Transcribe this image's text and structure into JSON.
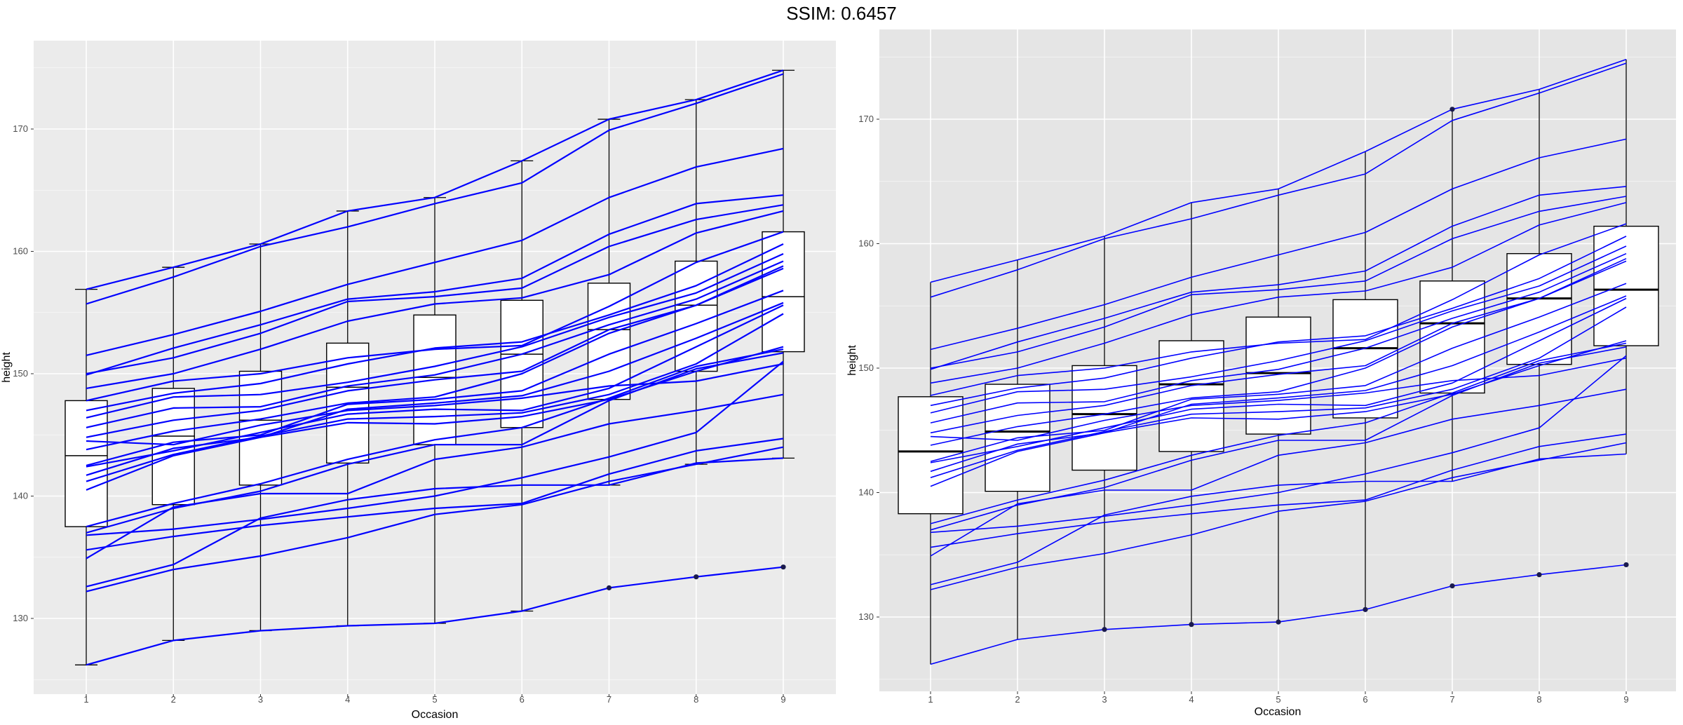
{
  "title": "SSIM: 0.6457",
  "chart_data": [
    {
      "type": "line",
      "variant": "boxplot-with-individual-trajectories",
      "xlabel": "Occasion",
      "ylabel": "height",
      "categories": [
        "1",
        "2",
        "3",
        "4",
        "5",
        "6",
        "7",
        "8",
        "9"
      ],
      "ylim": [
        122,
        176
      ],
      "yticks": [
        130,
        140,
        150,
        160,
        170
      ],
      "yticklabels": [
        "130",
        "140",
        "150",
        "160",
        "170"
      ],
      "grid": true,
      "legend": "none",
      "colors": {
        "lines": "#0000ff",
        "panel": "#ebebeb",
        "grid": "#ffffff",
        "box": "#000000"
      },
      "boxes": [
        {
          "x": "1",
          "whisker_low": 126.2,
          "q1": 137.5,
          "median": 143.3,
          "q3": 147.8,
          "whisker_high": 156.9
        },
        {
          "x": "2",
          "whisker_low": 128.2,
          "q1": 139.3,
          "median": 144.9,
          "q3": 148.8,
          "whisker_high": 158.7
        },
        {
          "x": "3",
          "whisker_low": 129.0,
          "q1": 140.9,
          "median": 146.2,
          "q3": 150.2,
          "whisker_high": 160.6
        },
        {
          "x": "4",
          "whisker_low": 129.4,
          "q1": 142.7,
          "median": 148.9,
          "q3": 152.5,
          "whisker_high": 163.3
        },
        {
          "x": "5",
          "whisker_low": 129.6,
          "q1": 144.2,
          "median": 149.7,
          "q3": 154.8,
          "whisker_high": 164.4
        },
        {
          "x": "6",
          "whisker_low": 130.6,
          "q1": 145.6,
          "median": 151.6,
          "q3": 156.0,
          "whisker_high": 167.4
        },
        {
          "x": "7",
          "whisker_low": 140.9,
          "q1": 147.9,
          "median": 153.6,
          "q3": 157.4,
          "whisker_high": 170.8
        },
        {
          "x": "8",
          "whisker_low": 142.6,
          "q1": 150.2,
          "median": 155.6,
          "q3": 159.2,
          "whisker_high": 172.4
        },
        {
          "x": "9",
          "whisker_low": 143.1,
          "q1": 151.8,
          "median": 156.3,
          "q3": 161.6,
          "whisker_high": 174.8
        }
      ],
      "outliers": [
        {
          "x": "7",
          "y": 132.5
        },
        {
          "x": "8",
          "y": 133.4
        },
        {
          "x": "9",
          "y": 134.2
        }
      ],
      "series": [
        {
          "values": [
            155.7,
            157.9,
            160.4,
            162.0,
            163.9,
            165.6,
            169.9,
            172.1,
            174.5
          ]
        },
        {
          "values": [
            156.9,
            158.7,
            160.6,
            163.3,
            164.4,
            167.4,
            170.8,
            172.4,
            174.8
          ]
        },
        {
          "values": [
            151.5,
            153.2,
            155.1,
            157.3,
            159.1,
            160.9,
            164.4,
            166.9,
            168.4
          ]
        },
        {
          "values": [
            149.9,
            152.1,
            154.0,
            156.1,
            156.7,
            157.8,
            161.4,
            163.9,
            164.6
          ]
        },
        {
          "values": [
            150.0,
            151.3,
            153.3,
            155.9,
            156.3,
            157.0,
            160.4,
            162.6,
            163.8
          ]
        },
        {
          "values": [
            148.8,
            150.0,
            152.0,
            154.3,
            155.7,
            156.2,
            158.1,
            161.5,
            163.3
          ]
        },
        {
          "values": [
            147.8,
            149.4,
            150.0,
            151.3,
            152.0,
            152.3,
            155.5,
            159.1,
            161.6
          ]
        },
        {
          "values": [
            147.0,
            148.4,
            149.2,
            150.8,
            152.1,
            152.6,
            154.8,
            157.2,
            160.6
          ]
        },
        {
          "values": [
            146.4,
            148.1,
            148.3,
            149.3,
            150.6,
            152.2,
            154.6,
            156.6,
            159.8
          ]
        },
        {
          "values": [
            145.6,
            147.2,
            147.3,
            149.0,
            149.9,
            151.6,
            154.0,
            156.1,
            159.2
          ]
        },
        {
          "values": [
            144.8,
            146.2,
            147.0,
            148.6,
            149.5,
            150.2,
            153.6,
            155.6,
            158.8
          ]
        },
        {
          "values": [
            143.8,
            145.3,
            146.3,
            147.6,
            148.1,
            150.0,
            153.3,
            155.6,
            158.6
          ]
        },
        {
          "values": [
            142.5,
            144.4,
            145.0,
            147.5,
            147.9,
            148.6,
            151.6,
            154.1,
            156.8
          ]
        },
        {
          "values": [
            141.7,
            143.9,
            144.8,
            147.1,
            147.6,
            148.2,
            150.2,
            152.9,
            155.8
          ]
        },
        {
          "values": [
            142.4,
            143.7,
            145.2,
            146.7,
            147.1,
            147.0,
            148.8,
            152.2,
            155.6
          ]
        },
        {
          "values": [
            141.2,
            143.4,
            144.9,
            146.3,
            146.5,
            146.8,
            148.3,
            150.8,
            154.9
          ]
        },
        {
          "values": [
            140.5,
            143.3,
            144.8,
            146.0,
            145.9,
            146.5,
            147.9,
            150.2,
            152.2
          ]
        },
        {
          "values": [
            137.5,
            139.4,
            141.0,
            143.0,
            144.6,
            145.6,
            148.0,
            150.6,
            152.0
          ]
        },
        {
          "values": [
            137.0,
            139.0,
            140.4,
            142.6,
            144.2,
            144.2,
            147.8,
            150.4,
            151.7
          ]
        },
        {
          "values": [
            134.9,
            139.1,
            140.2,
            140.2,
            143.0,
            144.0,
            145.9,
            147.0,
            148.3
          ]
        },
        {
          "values": [
            135.6,
            136.7,
            137.6,
            138.3,
            139.0,
            139.4,
            141.8,
            143.7,
            144.7
          ]
        },
        {
          "values": [
            132.6,
            134.4,
            138.2,
            139.7,
            140.6,
            140.9,
            140.9,
            142.7,
            143.1
          ]
        },
        {
          "values": [
            132.2,
            134.0,
            135.1,
            136.6,
            138.5,
            139.3,
            141.2,
            142.6,
            144.0
          ]
        },
        {
          "values": [
            126.2,
            128.2,
            129.0,
            129.4,
            129.6,
            130.6,
            132.5,
            133.4,
            134.2
          ]
        },
        {
          "values": [
            136.8,
            137.3,
            138.1,
            139.0,
            140.0,
            141.5,
            143.2,
            145.2,
            151.0
          ]
        },
        {
          "values": [
            144.5,
            144.2,
            145.8,
            147.0,
            147.4,
            148.0,
            149.0,
            149.4,
            150.8
          ]
        }
      ]
    },
    {
      "type": "line",
      "variant": "boxplot-with-individual-trajectories",
      "xlabel": "Occasion",
      "ylabel": "height",
      "categories": [
        "1",
        "2",
        "3",
        "4",
        "5",
        "6",
        "7",
        "8",
        "9"
      ],
      "ylim": [
        122,
        176
      ],
      "yticks": [
        130,
        140,
        150,
        160,
        170
      ],
      "yticklabels": [
        "130",
        "140",
        "150",
        "160",
        "170"
      ],
      "grid": true,
      "legend": "none",
      "colors": {
        "lines": "#0000ff",
        "panel": "#e5e5e5",
        "grid": "#ffffff",
        "box": "#000000"
      },
      "boxes": [
        {
          "x": "1",
          "whisker_low": 126.2,
          "q1": 138.3,
          "median": 143.3,
          "q3": 147.7,
          "whisker_high": 156.9
        },
        {
          "x": "2",
          "whisker_low": 128.2,
          "q1": 140.1,
          "median": 144.9,
          "q3": 148.7,
          "whisker_high": 158.7
        },
        {
          "x": "3",
          "whisker_low": 129.0,
          "q1": 141.8,
          "median": 146.3,
          "q3": 150.2,
          "whisker_high": 160.6
        },
        {
          "x": "4",
          "whisker_low": 129.4,
          "q1": 143.3,
          "median": 148.7,
          "q3": 152.2,
          "whisker_high": 163.3
        },
        {
          "x": "5",
          "whisker_low": 129.6,
          "q1": 144.7,
          "median": 149.6,
          "q3": 154.1,
          "whisker_high": 164.4
        },
        {
          "x": "6",
          "whisker_low": 130.6,
          "q1": 146.0,
          "median": 151.6,
          "q3": 155.5,
          "whisker_high": 167.4
        },
        {
          "x": "7",
          "whisker_low": 140.9,
          "q1": 148.0,
          "median": 153.6,
          "q3": 157.0,
          "whisker_high": 170.8
        },
        {
          "x": "8",
          "whisker_low": 142.6,
          "q1": 150.3,
          "median": 155.6,
          "q3": 159.2,
          "whisker_high": 172.4
        },
        {
          "x": "9",
          "whisker_low": 143.1,
          "q1": 151.8,
          "median": 156.3,
          "q3": 161.4,
          "whisker_high": 174.8
        }
      ],
      "outliers": [
        {
          "x": "3",
          "y": 129.0
        },
        {
          "x": "4",
          "y": 129.4
        },
        {
          "x": "5",
          "y": 129.6
        },
        {
          "x": "6",
          "y": 130.6
        },
        {
          "x": "7",
          "y": 132.5
        },
        {
          "x": "8",
          "y": 133.4
        },
        {
          "x": "9",
          "y": 134.2
        },
        {
          "x": "7",
          "y": 170.8
        }
      ],
      "series": [
        {
          "values": [
            155.7,
            157.9,
            160.4,
            162.0,
            163.9,
            165.6,
            169.9,
            172.1,
            174.5
          ]
        },
        {
          "values": [
            156.9,
            158.7,
            160.6,
            163.3,
            164.4,
            167.4,
            170.8,
            172.4,
            174.8
          ]
        },
        {
          "values": [
            151.5,
            153.2,
            155.1,
            157.3,
            159.1,
            160.9,
            164.4,
            166.9,
            168.4
          ]
        },
        {
          "values": [
            149.9,
            152.1,
            154.0,
            156.1,
            156.7,
            157.8,
            161.4,
            163.9,
            164.6
          ]
        },
        {
          "values": [
            150.0,
            151.3,
            153.3,
            155.9,
            156.3,
            157.0,
            160.4,
            162.6,
            163.8
          ]
        },
        {
          "values": [
            148.8,
            150.0,
            152.0,
            154.3,
            155.7,
            156.2,
            158.1,
            161.5,
            163.3
          ]
        },
        {
          "values": [
            147.8,
            149.4,
            150.0,
            151.3,
            152.0,
            152.3,
            155.5,
            159.1,
            161.6
          ]
        },
        {
          "values": [
            147.0,
            148.4,
            149.2,
            150.8,
            152.1,
            152.6,
            154.8,
            157.2,
            160.6
          ]
        },
        {
          "values": [
            146.4,
            148.1,
            148.3,
            149.3,
            150.6,
            152.2,
            154.6,
            156.6,
            159.8
          ]
        },
        {
          "values": [
            145.6,
            147.2,
            147.3,
            149.0,
            149.9,
            151.6,
            154.0,
            156.1,
            159.2
          ]
        },
        {
          "values": [
            144.8,
            146.2,
            147.0,
            148.6,
            149.5,
            150.2,
            153.6,
            155.6,
            158.8
          ]
        },
        {
          "values": [
            143.8,
            145.3,
            146.3,
            147.6,
            148.1,
            150.0,
            153.3,
            155.6,
            158.6
          ]
        },
        {
          "values": [
            142.5,
            144.4,
            145.0,
            147.5,
            147.9,
            148.6,
            151.6,
            154.1,
            156.8
          ]
        },
        {
          "values": [
            141.7,
            143.9,
            144.8,
            147.1,
            147.6,
            148.2,
            150.2,
            152.9,
            155.8
          ]
        },
        {
          "values": [
            142.4,
            143.7,
            145.2,
            146.7,
            147.1,
            147.0,
            148.8,
            152.2,
            155.6
          ]
        },
        {
          "values": [
            141.2,
            143.4,
            144.9,
            146.3,
            146.5,
            146.8,
            148.3,
            150.8,
            154.9
          ]
        },
        {
          "values": [
            140.5,
            143.3,
            144.8,
            146.0,
            145.9,
            146.5,
            147.9,
            150.2,
            152.2
          ]
        },
        {
          "values": [
            137.5,
            139.4,
            141.0,
            143.0,
            144.6,
            145.6,
            148.0,
            150.6,
            152.0
          ]
        },
        {
          "values": [
            137.0,
            139.0,
            140.4,
            142.6,
            144.2,
            144.2,
            147.8,
            150.4,
            151.7
          ]
        },
        {
          "values": [
            134.9,
            139.1,
            140.2,
            140.2,
            143.0,
            144.0,
            145.9,
            147.0,
            148.3
          ]
        },
        {
          "values": [
            135.6,
            136.7,
            137.6,
            138.3,
            139.0,
            139.4,
            141.8,
            143.7,
            144.7
          ]
        },
        {
          "values": [
            132.6,
            134.4,
            138.2,
            139.7,
            140.6,
            140.9,
            140.9,
            142.7,
            143.1
          ]
        },
        {
          "values": [
            132.2,
            134.0,
            135.1,
            136.6,
            138.5,
            139.3,
            141.2,
            142.6,
            144.0
          ]
        },
        {
          "values": [
            126.2,
            128.2,
            129.0,
            129.4,
            129.6,
            130.6,
            132.5,
            133.4,
            134.2
          ]
        },
        {
          "values": [
            136.8,
            137.3,
            138.1,
            139.0,
            140.0,
            141.5,
            143.2,
            145.2,
            151.0
          ]
        },
        {
          "values": [
            144.5,
            144.2,
            145.8,
            147.0,
            147.4,
            148.0,
            149.0,
            149.4,
            150.8
          ]
        }
      ]
    }
  ]
}
